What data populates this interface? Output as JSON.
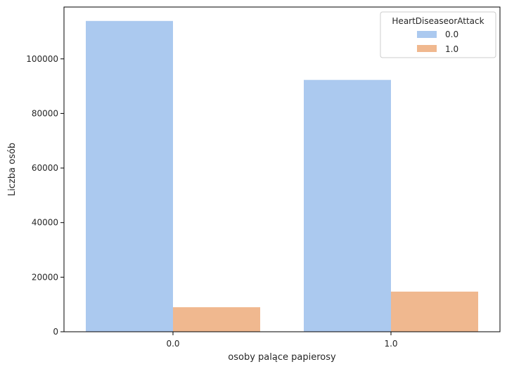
{
  "chart_data": {
    "type": "bar",
    "title": "",
    "xlabel": "osoby palące papierosy",
    "ylabel": "Liczba osób",
    "categories": [
      "0.0",
      "1.0"
    ],
    "ylim": [
      0,
      119000
    ],
    "yticks": [
      0,
      20000,
      40000,
      60000,
      80000,
      100000
    ],
    "grid": false,
    "legend": {
      "title": "HeartDiseaseorAttack",
      "placement": "top-right"
    },
    "series": [
      {
        "name": "0.0",
        "color": "#abc9ef",
        "values": [
          113900,
          92300
        ]
      },
      {
        "name": "1.0",
        "color": "#f0b88f",
        "values": [
          9000,
          14700
        ]
      }
    ]
  }
}
